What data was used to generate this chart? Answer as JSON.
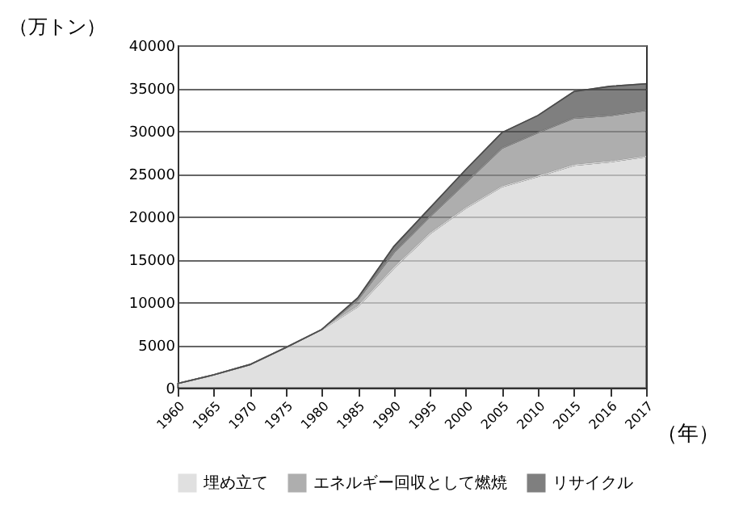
{
  "chart_data": {
    "type": "area",
    "stacked": true,
    "xlabel": "（年）",
    "ylabel": "（万トン）",
    "categories": [
      "1960",
      "1965",
      "1970",
      "1975",
      "1980",
      "1985",
      "1990",
      "1995",
      "2000",
      "2005",
      "2010",
      "2015",
      "2016",
      "2017"
    ],
    "series": [
      {
        "name": "埋め立て",
        "color": "#d4d4d4",
        "values": [
          500,
          1500,
          2700,
          4700,
          6800,
          9500,
          14000,
          18000,
          21000,
          23500,
          24700,
          26000,
          26400,
          27000
        ]
      },
      {
        "name": "エネルギー回収として燃焼",
        "color": "#8c8c8c",
        "values": [
          0,
          0,
          0,
          0,
          0,
          800,
          1800,
          2000,
          3000,
          4500,
          5100,
          5500,
          5400,
          5400
        ]
      },
      {
        "name": "リサイクル",
        "color": "#4a4a4a",
        "values": [
          0,
          0,
          0,
          0,
          0,
          200,
          700,
          1000,
          1500,
          1800,
          2000,
          3100,
          3400,
          3100
        ]
      }
    ],
    "ylim": [
      0,
      40000
    ],
    "yticks": [
      0,
      5000,
      10000,
      15000,
      20000,
      25000,
      30000,
      35000,
      40000
    ],
    "grid": "y",
    "legend": "bottom"
  }
}
